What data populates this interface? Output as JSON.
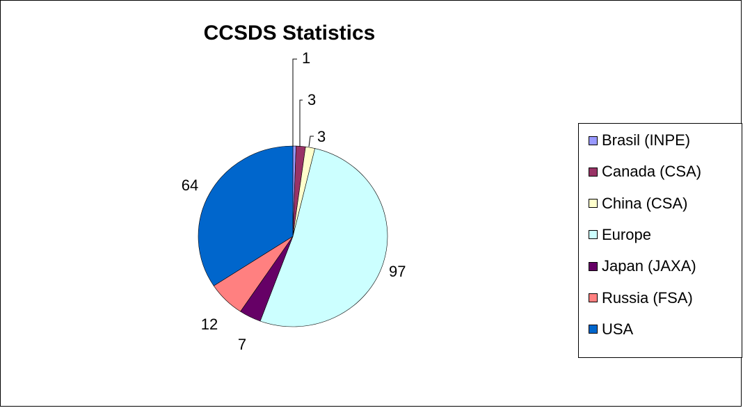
{
  "chart_data": {
    "type": "pie",
    "title": "CCSDS Statistics",
    "legend_position": "right",
    "slices": [
      {
        "label": "Brasil (INPE)",
        "value": 1,
        "color": "#9999ff"
      },
      {
        "label": "Canada (CSA)",
        "value": 3,
        "color": "#993366"
      },
      {
        "label": "China (CSA)",
        "value": 3,
        "color": "#ffffcc"
      },
      {
        "label": "Europe",
        "value": 97,
        "color": "#ccffff"
      },
      {
        "label": "Japan (JAXA)",
        "value": 7,
        "color": "#660066"
      },
      {
        "label": "Russia (FSA)",
        "value": 12,
        "color": "#ff8080"
      },
      {
        "label": "USA",
        "value": 64,
        "color": "#0066cc"
      }
    ]
  }
}
